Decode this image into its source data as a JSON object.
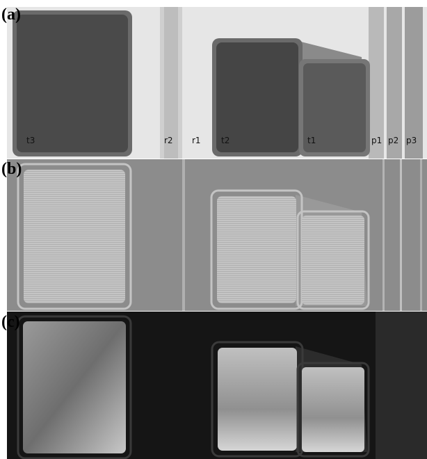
{
  "panels": [
    {
      "label": "(a)",
      "annotations": [
        "t3",
        "r2",
        "r1",
        "t2",
        "t1",
        "p1",
        "p2",
        "p3"
      ]
    },
    {
      "label": "(b)"
    },
    {
      "label": "(c)"
    }
  ]
}
